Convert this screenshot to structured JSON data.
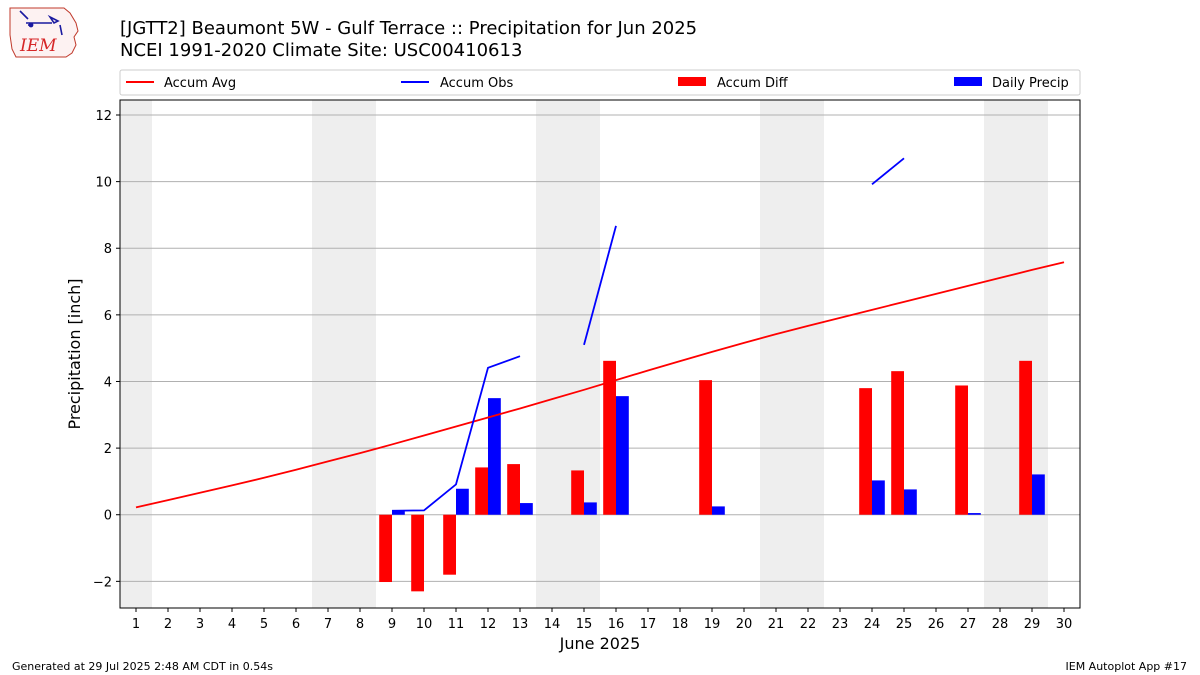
{
  "header": {
    "title": "[JGTT2] Beaumont 5W - Gulf Terrace :: Precipitation for Jun 2025",
    "subtitle": "NCEI 1991-2020 Climate Site: USC00410613"
  },
  "logo": {
    "text": "IEM",
    "icon": "iowa-state-outline-icon"
  },
  "footer": {
    "left": "Generated at 29 Jul 2025 2:48 AM CDT in 0.54s",
    "right": "IEM Autoplot App #17"
  },
  "colors": {
    "accum_avg": "#ff0000",
    "accum_obs": "#0000ff",
    "accum_diff": "#ff0000",
    "daily_precip": "#0000ff",
    "weekend_band": "#eeeeee",
    "grid": "#b0b0b0"
  },
  "chart_data": {
    "type": "bar",
    "xlabel": "June 2025",
    "ylabel": "Precipitation [inch]",
    "xlim": [
      0.5,
      30.5
    ],
    "ylim": [
      -2.8,
      12.45
    ],
    "x_ticks": [
      1,
      2,
      3,
      4,
      5,
      6,
      7,
      8,
      9,
      10,
      11,
      12,
      13,
      14,
      15,
      16,
      17,
      18,
      19,
      20,
      21,
      22,
      23,
      24,
      25,
      26,
      27,
      28,
      29,
      30
    ],
    "y_ticks": [
      -2,
      0,
      2,
      4,
      6,
      8,
      10,
      12
    ],
    "y_tick_labels": [
      "−2",
      "0",
      "2",
      "4",
      "6",
      "8",
      "10",
      "12"
    ],
    "grid": "horizontal",
    "legend_position": "top, above plot",
    "weekend_days": [
      1,
      7,
      8,
      14,
      15,
      21,
      22,
      28,
      29
    ],
    "legend": [
      {
        "label": "Accum Avg",
        "kind": "line",
        "color": "#ff0000"
      },
      {
        "label": "Accum Obs",
        "kind": "line",
        "color": "#0000ff"
      },
      {
        "label": "Accum Diff",
        "kind": "bar",
        "color": "#ff0000"
      },
      {
        "label": "Daily Precip",
        "kind": "bar",
        "color": "#0000ff"
      }
    ],
    "accum_avg": {
      "name": "Accum Avg",
      "x": [
        1,
        2,
        3,
        4,
        5,
        6,
        7,
        8,
        9,
        10,
        11,
        12,
        13,
        14,
        15,
        16,
        17,
        18,
        19,
        20,
        21,
        22,
        23,
        24,
        25,
        26,
        27,
        28,
        29,
        30
      ],
      "y": [
        0.22,
        0.44,
        0.66,
        0.88,
        1.11,
        1.35,
        1.6,
        1.85,
        2.11,
        2.38,
        2.65,
        2.92,
        3.19,
        3.47,
        3.75,
        4.04,
        4.33,
        4.61,
        4.89,
        5.16,
        5.42,
        5.67,
        5.91,
        6.15,
        6.39,
        6.63,
        6.87,
        7.11,
        7.35,
        7.58
      ]
    },
    "accum_obs": {
      "name": "Accum Obs",
      "segments": [
        {
          "x": [
            9,
            10,
            11,
            12,
            13
          ],
          "y": [
            0.12,
            0.13,
            0.91,
            4.41,
            4.76
          ]
        },
        {
          "x": [
            15,
            16
          ],
          "y": [
            5.1,
            8.67
          ]
        },
        {
          "x": [
            24,
            25
          ],
          "y": [
            9.92,
            10.7
          ]
        }
      ]
    },
    "accum_diff": {
      "name": "Accum Diff",
      "x": [
        9,
        10,
        11,
        12,
        13,
        15,
        16,
        19,
        24,
        25,
        27,
        29
      ],
      "y": [
        -2.02,
        -2.3,
        -1.8,
        1.42,
        1.52,
        1.33,
        4.62,
        4.04,
        3.8,
        4.31,
        3.88,
        4.62
      ]
    },
    "daily_precip": {
      "name": "Daily Precip",
      "x": [
        9,
        11,
        12,
        13,
        15,
        16,
        19,
        24,
        25,
        27,
        29
      ],
      "y": [
        0.12,
        0.78,
        3.5,
        0.35,
        0.37,
        3.56,
        0.25,
        1.03,
        0.76,
        0.05,
        1.21
      ]
    }
  }
}
